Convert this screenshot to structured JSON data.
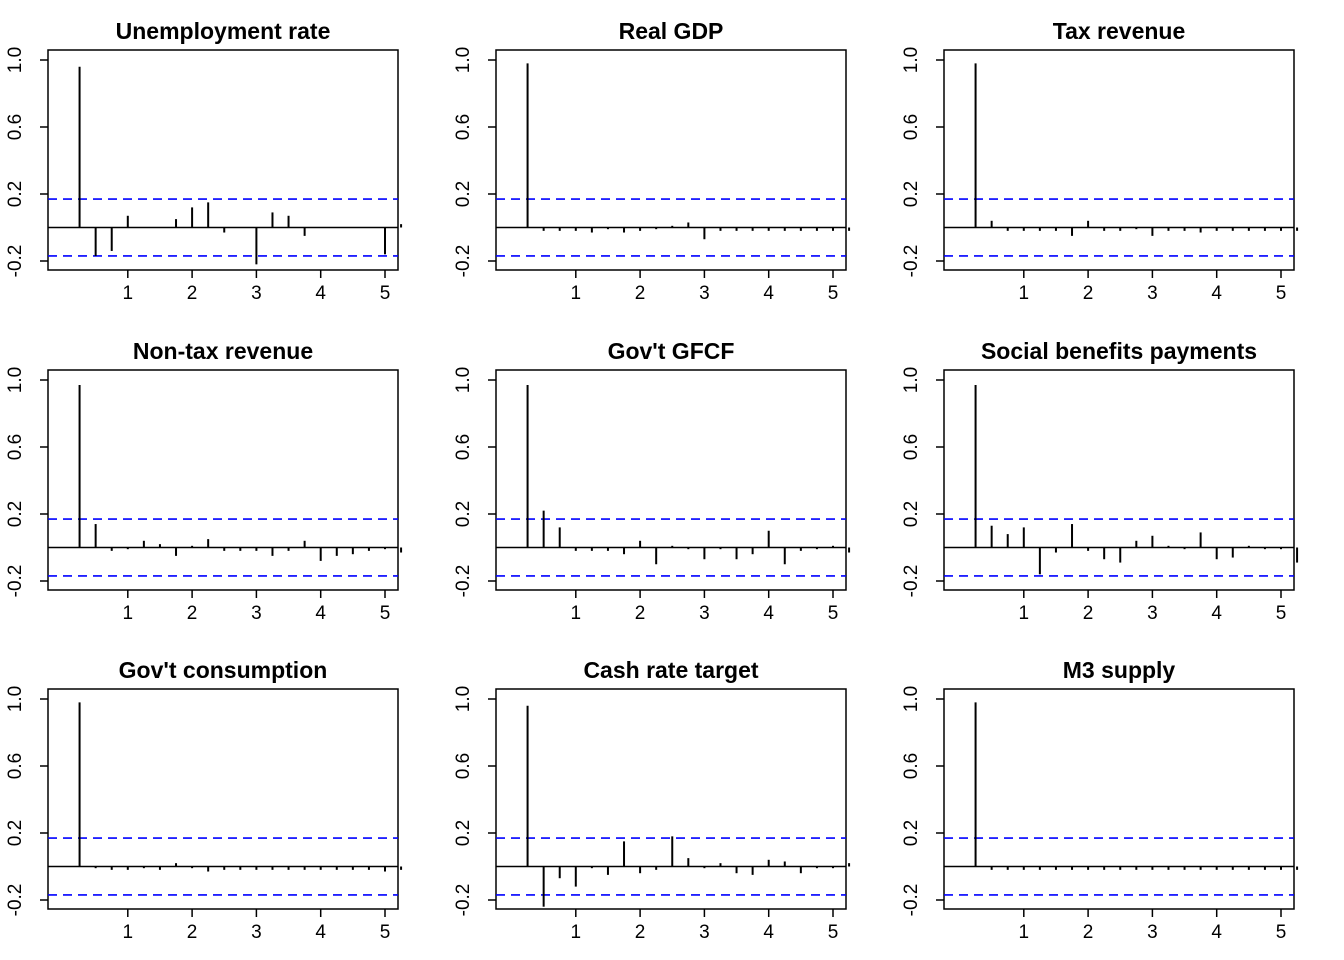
{
  "chart_data": [
    {
      "type": "bar",
      "title": "Unemployment rate",
      "x": [
        0.25,
        0.5,
        0.75,
        1.0,
        1.25,
        1.5,
        1.75,
        2.0,
        2.25,
        2.5,
        2.75,
        3.0,
        3.25,
        3.5,
        3.75,
        4.0,
        4.25,
        4.5,
        4.75,
        5.0,
        5.25
      ],
      "values": [
        0.96,
        -0.17,
        -0.14,
        0.07,
        0.0,
        0.0,
        0.05,
        0.12,
        0.15,
        -0.03,
        0.0,
        -0.22,
        0.09,
        0.07,
        -0.05,
        0.0,
        0.0,
        0.0,
        0.0,
        -0.16,
        0.02
      ],
      "ci": 0.17,
      "xlim": [
        0,
        5.4
      ],
      "ylim": [
        -0.25,
        1.0
      ],
      "xticks": [
        "1",
        "2",
        "3",
        "4",
        "5"
      ],
      "yticks": [
        "-0.2",
        "0.2",
        "0.6",
        "1.0"
      ]
    },
    {
      "type": "bar",
      "title": "Real GDP",
      "x": [
        0.25,
        0.5,
        0.75,
        1.0,
        1.25,
        1.5,
        1.75,
        2.0,
        2.25,
        2.5,
        2.75,
        3.0,
        3.25,
        3.5,
        3.75,
        4.0,
        4.25,
        4.5,
        4.75,
        5.0,
        5.25
      ],
      "values": [
        0.98,
        -0.02,
        -0.02,
        -0.02,
        -0.03,
        -0.01,
        -0.03,
        -0.02,
        -0.01,
        0.01,
        0.03,
        -0.07,
        -0.02,
        -0.02,
        -0.02,
        -0.02,
        -0.02,
        -0.02,
        -0.02,
        -0.02,
        -0.02
      ],
      "ci": 0.17,
      "xlim": [
        0,
        5.4
      ],
      "ylim": [
        -0.25,
        1.0
      ],
      "xticks": [
        "1",
        "2",
        "3",
        "4",
        "5"
      ],
      "yticks": [
        "-0.2",
        "0.2",
        "0.6",
        "1.0"
      ]
    },
    {
      "type": "bar",
      "title": "Tax revenue",
      "x": [
        0.25,
        0.5,
        0.75,
        1.0,
        1.25,
        1.5,
        1.75,
        2.0,
        2.25,
        2.5,
        2.75,
        3.0,
        3.25,
        3.5,
        3.75,
        4.0,
        4.25,
        4.5,
        4.75,
        5.0,
        5.25
      ],
      "values": [
        0.98,
        0.04,
        -0.02,
        -0.02,
        -0.02,
        -0.02,
        -0.05,
        0.04,
        -0.02,
        -0.02,
        -0.01,
        -0.05,
        -0.02,
        -0.02,
        -0.03,
        -0.02,
        -0.02,
        -0.02,
        -0.02,
        -0.02,
        -0.02
      ],
      "ci": 0.17,
      "xlim": [
        0,
        5.4
      ],
      "ylim": [
        -0.25,
        1.0
      ],
      "xticks": [
        "1",
        "2",
        "3",
        "4",
        "5"
      ],
      "yticks": [
        "-0.2",
        "0.2",
        "0.6",
        "1.0"
      ]
    },
    {
      "type": "bar",
      "title": "Non-tax revenue",
      "x": [
        0.25,
        0.5,
        0.75,
        1.0,
        1.25,
        1.5,
        1.75,
        2.0,
        2.25,
        2.5,
        2.75,
        3.0,
        3.25,
        3.5,
        3.75,
        4.0,
        4.25,
        4.5,
        4.75,
        5.0,
        5.25
      ],
      "values": [
        0.97,
        0.14,
        -0.02,
        -0.01,
        0.04,
        0.02,
        -0.05,
        0.01,
        0.05,
        -0.02,
        -0.02,
        -0.02,
        -0.05,
        -0.02,
        0.04,
        -0.08,
        -0.05,
        -0.04,
        -0.02,
        -0.01,
        -0.03
      ],
      "ci": 0.17,
      "xlim": [
        0,
        5.4
      ],
      "ylim": [
        -0.25,
        1.0
      ],
      "xticks": [
        "1",
        "2",
        "3",
        "4",
        "5"
      ],
      "yticks": [
        "-0.2",
        "0.2",
        "0.6",
        "1.0"
      ]
    },
    {
      "type": "bar",
      "title": "Gov't GFCF",
      "x": [
        0.25,
        0.5,
        0.75,
        1.0,
        1.25,
        1.5,
        1.75,
        2.0,
        2.25,
        2.5,
        2.75,
        3.0,
        3.25,
        3.5,
        3.75,
        4.0,
        4.25,
        4.5,
        4.75,
        5.0,
        5.25
      ],
      "values": [
        0.97,
        0.22,
        0.12,
        -0.02,
        -0.02,
        -0.02,
        -0.04,
        0.04,
        -0.1,
        0.01,
        -0.01,
        -0.07,
        -0.01,
        -0.07,
        -0.04,
        0.1,
        -0.1,
        -0.02,
        -0.01,
        0.01,
        -0.03
      ],
      "ci": 0.17,
      "xlim": [
        0,
        5.4
      ],
      "ylim": [
        -0.25,
        1.0
      ],
      "xticks": [
        "1",
        "2",
        "3",
        "4",
        "5"
      ],
      "yticks": [
        "-0.2",
        "0.2",
        "0.6",
        "1.0"
      ]
    },
    {
      "type": "bar",
      "title": "Social benefits payments",
      "x": [
        0.25,
        0.5,
        0.75,
        1.0,
        1.25,
        1.5,
        1.75,
        2.0,
        2.25,
        2.5,
        2.75,
        3.0,
        3.25,
        3.5,
        3.75,
        4.0,
        4.25,
        4.5,
        4.75,
        5.0,
        5.25
      ],
      "values": [
        0.97,
        0.13,
        0.08,
        0.12,
        -0.16,
        -0.03,
        0.14,
        -0.02,
        -0.07,
        -0.09,
        0.04,
        0.07,
        0.01,
        -0.01,
        0.09,
        -0.07,
        -0.06,
        0.01,
        -0.01,
        -0.01,
        -0.09
      ],
      "ci": 0.17,
      "xlim": [
        0,
        5.4
      ],
      "ylim": [
        -0.25,
        1.0
      ],
      "xticks": [
        "1",
        "2",
        "3",
        "4",
        "5"
      ],
      "yticks": [
        "-0.2",
        "0.2",
        "0.6",
        "1.0"
      ]
    },
    {
      "type": "bar",
      "title": "Gov't consumption",
      "x": [
        0.25,
        0.5,
        0.75,
        1.0,
        1.25,
        1.5,
        1.75,
        2.0,
        2.25,
        2.5,
        2.75,
        3.0,
        3.25,
        3.5,
        3.75,
        4.0,
        4.25,
        4.5,
        4.75,
        5.0,
        5.25
      ],
      "values": [
        0.98,
        -0.01,
        -0.02,
        -0.02,
        -0.01,
        -0.02,
        0.02,
        -0.01,
        -0.03,
        -0.02,
        -0.02,
        -0.02,
        -0.02,
        -0.02,
        -0.02,
        -0.02,
        -0.02,
        -0.02,
        -0.02,
        -0.03,
        -0.02
      ],
      "ci": 0.17,
      "xlim": [
        0,
        5.4
      ],
      "ylim": [
        -0.25,
        1.0
      ],
      "xticks": [
        "1",
        "2",
        "3",
        "4",
        "5"
      ],
      "yticks": [
        "-0.2",
        "0.2",
        "0.6",
        "1.0"
      ]
    },
    {
      "type": "bar",
      "title": "Cash rate target",
      "x": [
        0.25,
        0.5,
        0.75,
        1.0,
        1.25,
        1.5,
        1.75,
        2.0,
        2.25,
        2.5,
        2.75,
        3.0,
        3.25,
        3.5,
        3.75,
        4.0,
        4.25,
        4.5,
        4.75,
        5.0,
        5.25
      ],
      "values": [
        0.96,
        -0.24,
        -0.07,
        -0.12,
        -0.01,
        -0.05,
        0.15,
        -0.04,
        -0.02,
        0.18,
        0.05,
        -0.01,
        0.02,
        -0.04,
        -0.05,
        0.04,
        0.03,
        -0.04,
        -0.01,
        -0.01,
        0.02
      ],
      "ci": 0.17,
      "xlim": [
        0,
        5.4
      ],
      "ylim": [
        -0.25,
        1.0
      ],
      "xticks": [
        "1",
        "2",
        "3",
        "4",
        "5"
      ],
      "yticks": [
        "-0.2",
        "0.2",
        "0.6",
        "1.0"
      ]
    },
    {
      "type": "bar",
      "title": "M3 supply",
      "x": [
        0.25,
        0.5,
        0.75,
        1.0,
        1.25,
        1.5,
        1.75,
        2.0,
        2.25,
        2.5,
        2.75,
        3.0,
        3.25,
        3.5,
        3.75,
        4.0,
        4.25,
        4.5,
        4.75,
        5.0,
        5.25
      ],
      "values": [
        0.98,
        -0.02,
        -0.02,
        -0.02,
        -0.02,
        -0.02,
        -0.02,
        -0.02,
        -0.02,
        -0.02,
        -0.02,
        -0.02,
        -0.02,
        -0.02,
        -0.02,
        -0.02,
        -0.02,
        -0.02,
        -0.02,
        -0.02,
        -0.02
      ],
      "ci": 0.17,
      "xlim": [
        0,
        5.4
      ],
      "ylim": [
        -0.25,
        1.0
      ],
      "xticks": [
        "1",
        "2",
        "3",
        "4",
        "5"
      ],
      "yticks": [
        "-0.2",
        "0.2",
        "0.6",
        "1.0"
      ]
    }
  ],
  "colors": {
    "bars": "#000000",
    "confidence_band": "#0000ff",
    "axes": "#000000",
    "background": "#ffffff"
  }
}
